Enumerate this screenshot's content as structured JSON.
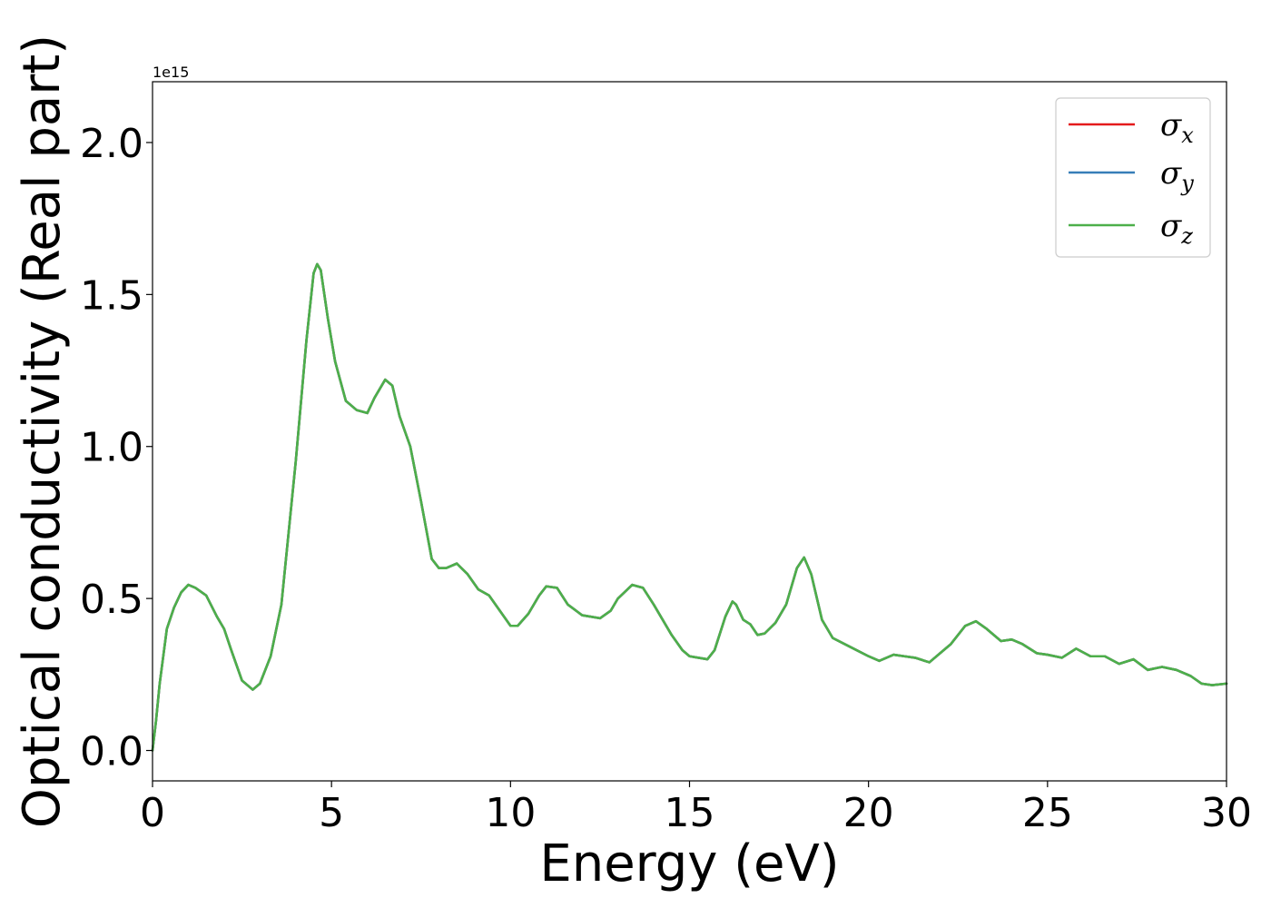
{
  "chart_data": {
    "type": "line",
    "title": "",
    "xlabel": "Energy (eV)",
    "ylabel": "Optical conductivity (Real part)",
    "y_offset_label": "1e15",
    "y_scale": 1000000000000000.0,
    "xlim": [
      0,
      30
    ],
    "ylim": [
      -0.1,
      2.2
    ],
    "xticks": [
      0,
      5,
      10,
      15,
      20,
      25,
      30
    ],
    "yticks": [
      0.0,
      0.5,
      1.0,
      1.5,
      2.0
    ],
    "xtick_labels": [
      "0",
      "5",
      "10",
      "15",
      "20",
      "25",
      "30"
    ],
    "ytick_labels": [
      "0.0",
      "0.5",
      "1.0",
      "1.5",
      "2.0"
    ],
    "grid": false,
    "legend_placement": "top-right",
    "x": [
      0,
      0.1,
      0.2,
      0.4,
      0.6,
      0.8,
      1.0,
      1.2,
      1.5,
      1.8,
      2.0,
      2.2,
      2.5,
      2.8,
      3.0,
      3.3,
      3.6,
      4.0,
      4.3,
      4.5,
      4.6,
      4.7,
      4.9,
      5.1,
      5.4,
      5.7,
      6.0,
      6.2,
      6.5,
      6.7,
      6.9,
      7.2,
      7.5,
      7.8,
      8.0,
      8.2,
      8.5,
      8.8,
      9.1,
      9.4,
      9.7,
      10.0,
      10.2,
      10.5,
      10.8,
      11.0,
      11.3,
      11.6,
      12.0,
      12.5,
      12.8,
      13.0,
      13.4,
      13.7,
      14.0,
      14.5,
      14.8,
      15.0,
      15.5,
      15.7,
      16.0,
      16.2,
      16.3,
      16.5,
      16.7,
      16.9,
      17.1,
      17.4,
      17.7,
      18.0,
      18.2,
      18.4,
      18.7,
      19.0,
      19.5,
      20.0,
      20.3,
      20.7,
      21.0,
      21.3,
      21.7,
      22.0,
      22.3,
      22.7,
      23.0,
      23.3,
      23.7,
      24.0,
      24.3,
      24.7,
      25.0,
      25.4,
      25.8,
      26.2,
      26.6,
      27.0,
      27.4,
      27.8,
      28.2,
      28.6,
      29.0,
      29.3,
      29.6,
      30.0
    ],
    "series": [
      {
        "name": "σx",
        "name_base": "σ",
        "name_sub": "x",
        "color": "#e41a1c",
        "y": [
          0.0,
          0.1,
          0.22,
          0.4,
          0.47,
          0.52,
          0.545,
          0.535,
          0.51,
          0.44,
          0.4,
          0.33,
          0.23,
          0.2,
          0.22,
          0.31,
          0.48,
          0.95,
          1.35,
          1.57,
          1.6,
          1.58,
          1.42,
          1.28,
          1.15,
          1.12,
          1.11,
          1.16,
          1.22,
          1.2,
          1.1,
          1.0,
          0.82,
          0.63,
          0.6,
          0.6,
          0.615,
          0.58,
          0.53,
          0.51,
          0.46,
          0.41,
          0.41,
          0.45,
          0.51,
          0.54,
          0.535,
          0.48,
          0.445,
          0.435,
          0.46,
          0.5,
          0.545,
          0.535,
          0.48,
          0.38,
          0.33,
          0.31,
          0.3,
          0.33,
          0.44,
          0.49,
          0.48,
          0.43,
          0.415,
          0.38,
          0.385,
          0.42,
          0.48,
          0.6,
          0.635,
          0.58,
          0.43,
          0.37,
          0.34,
          0.31,
          0.295,
          0.315,
          0.31,
          0.305,
          0.29,
          0.32,
          0.35,
          0.41,
          0.425,
          0.4,
          0.36,
          0.365,
          0.35,
          0.32,
          0.315,
          0.305,
          0.335,
          0.31,
          0.31,
          0.285,
          0.3,
          0.265,
          0.275,
          0.265,
          0.245,
          0.22,
          0.215,
          0.22
        ]
      },
      {
        "name": "σy",
        "name_base": "σ",
        "name_sub": "y",
        "color": "#377eb8",
        "y": [
          0.0,
          0.1,
          0.22,
          0.4,
          0.47,
          0.52,
          0.545,
          0.535,
          0.51,
          0.44,
          0.4,
          0.33,
          0.23,
          0.2,
          0.22,
          0.31,
          0.48,
          0.95,
          1.35,
          1.57,
          1.6,
          1.58,
          1.42,
          1.28,
          1.15,
          1.12,
          1.11,
          1.16,
          1.22,
          1.2,
          1.1,
          1.0,
          0.82,
          0.63,
          0.6,
          0.6,
          0.615,
          0.58,
          0.53,
          0.51,
          0.46,
          0.41,
          0.41,
          0.45,
          0.51,
          0.54,
          0.535,
          0.48,
          0.445,
          0.435,
          0.46,
          0.5,
          0.545,
          0.535,
          0.48,
          0.38,
          0.33,
          0.31,
          0.3,
          0.33,
          0.44,
          0.49,
          0.48,
          0.43,
          0.415,
          0.38,
          0.385,
          0.42,
          0.48,
          0.6,
          0.635,
          0.58,
          0.43,
          0.37,
          0.34,
          0.31,
          0.295,
          0.315,
          0.31,
          0.305,
          0.29,
          0.32,
          0.35,
          0.41,
          0.425,
          0.4,
          0.36,
          0.365,
          0.35,
          0.32,
          0.315,
          0.305,
          0.335,
          0.31,
          0.31,
          0.285,
          0.3,
          0.265,
          0.275,
          0.265,
          0.245,
          0.22,
          0.215,
          0.22
        ]
      },
      {
        "name": "σz",
        "name_base": "σ",
        "name_sub": "z",
        "color": "#4daf4a",
        "y": [
          0.0,
          0.1,
          0.22,
          0.4,
          0.47,
          0.52,
          0.545,
          0.535,
          0.51,
          0.44,
          0.4,
          0.33,
          0.23,
          0.2,
          0.22,
          0.31,
          0.48,
          0.95,
          1.35,
          1.57,
          1.6,
          1.58,
          1.42,
          1.28,
          1.15,
          1.12,
          1.11,
          1.16,
          1.22,
          1.2,
          1.1,
          1.0,
          0.82,
          0.63,
          0.6,
          0.6,
          0.615,
          0.58,
          0.53,
          0.51,
          0.46,
          0.41,
          0.41,
          0.45,
          0.51,
          0.54,
          0.535,
          0.48,
          0.445,
          0.435,
          0.46,
          0.5,
          0.545,
          0.535,
          0.48,
          0.38,
          0.33,
          0.31,
          0.3,
          0.33,
          0.44,
          0.49,
          0.48,
          0.43,
          0.415,
          0.38,
          0.385,
          0.42,
          0.48,
          0.6,
          0.635,
          0.58,
          0.43,
          0.37,
          0.34,
          0.31,
          0.295,
          0.315,
          0.31,
          0.305,
          0.29,
          0.32,
          0.35,
          0.41,
          0.425,
          0.4,
          0.36,
          0.365,
          0.35,
          0.32,
          0.315,
          0.305,
          0.335,
          0.31,
          0.31,
          0.285,
          0.3,
          0.265,
          0.275,
          0.265,
          0.245,
          0.22,
          0.215,
          0.22
        ]
      }
    ]
  }
}
